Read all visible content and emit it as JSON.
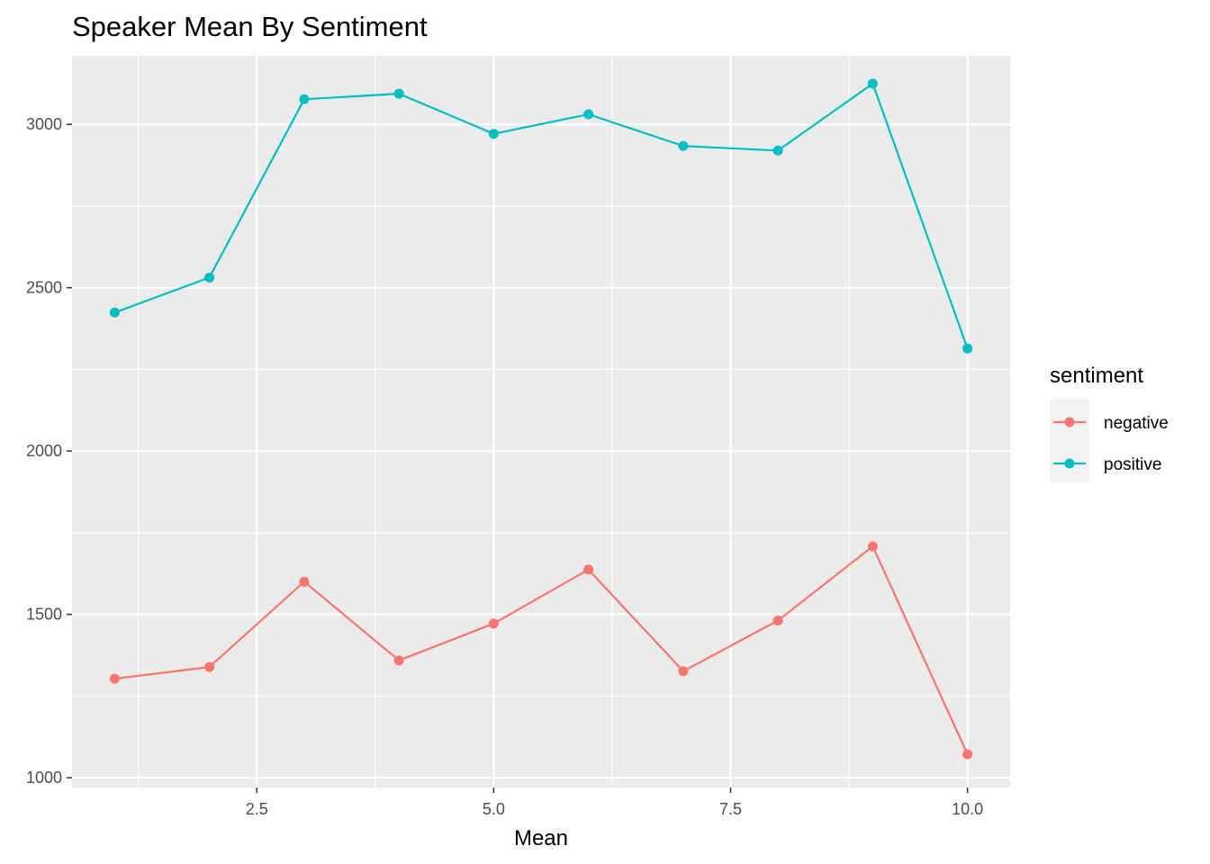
{
  "chart_data": {
    "type": "line",
    "title": "Speaker Mean By Sentiment",
    "xlabel": "Mean",
    "ylabel": "",
    "xlim": [
      0.55,
      10.45
    ],
    "ylim": [
      970,
      3210
    ],
    "x_ticks": [
      2.5,
      5.0,
      7.5,
      10.0
    ],
    "x_tick_labels": [
      "2.5",
      "5.0",
      "7.5",
      "10.0"
    ],
    "y_ticks": [
      1000,
      1500,
      2000,
      2500,
      3000
    ],
    "y_tick_labels": [
      "1000",
      "1500",
      "2000",
      "2500",
      "3000"
    ],
    "grid": true,
    "legend": {
      "title": "sentiment",
      "position": "right"
    },
    "x": [
      1,
      2,
      3,
      4,
      5,
      6,
      7,
      8,
      9,
      10
    ],
    "series": [
      {
        "name": "negative",
        "color": "#F8766D",
        "values": [
          1303,
          1339,
          1600,
          1359,
          1472,
          1637,
          1326,
          1481,
          1708,
          1072
        ]
      },
      {
        "name": "positive",
        "color": "#00BFC4",
        "values": [
          2424,
          2531,
          3077,
          3094,
          2971,
          3031,
          2934,
          2920,
          3125,
          2314
        ]
      }
    ]
  }
}
